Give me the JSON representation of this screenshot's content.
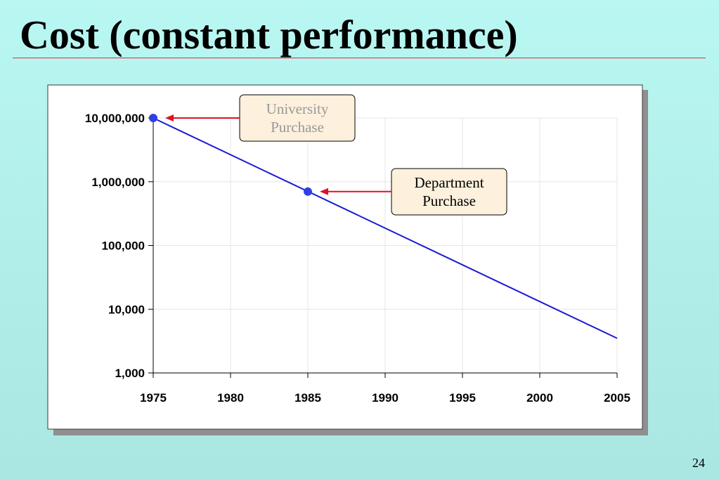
{
  "slide": {
    "title": "Cost (constant performance)",
    "page_number": "24"
  },
  "colors": {
    "series": "#1a1ad6",
    "marker": "#2f3fe8",
    "arrow": "#e01025",
    "callout_fill": "#fdf0dc",
    "title_rule": "#e8283c"
  },
  "chart_data": {
    "type": "line",
    "xlim": [
      1975,
      2005
    ],
    "ylim": [
      1000,
      10000000
    ],
    "y_scale": "log",
    "x_ticks": [
      1975,
      1980,
      1985,
      1990,
      1995,
      2000,
      2005
    ],
    "x_tick_labels": [
      "1975",
      "1980",
      "1985",
      "1990",
      "1995",
      "2000",
      "2005"
    ],
    "y_ticks": [
      1000,
      10000,
      100000,
      1000000,
      10000000
    ],
    "y_tick_labels": [
      "1,000",
      "10,000",
      "100,000",
      "1,000,000",
      "10,000,000"
    ],
    "grid": true,
    "series": [
      {
        "x": [
          1975,
          2005
        ],
        "y": [
          10000000,
          3500
        ]
      }
    ],
    "markers": [
      {
        "x": 1975,
        "y": 10000000
      },
      {
        "x": 1985,
        "y": 700000
      }
    ],
    "annotations": [
      {
        "lines": [
          "University",
          "Purchase"
        ],
        "text_color": "#999999",
        "points_to": 0
      },
      {
        "lines": [
          "Department",
          "Purchase"
        ],
        "text_color": "#000000",
        "points_to": 1
      }
    ]
  }
}
